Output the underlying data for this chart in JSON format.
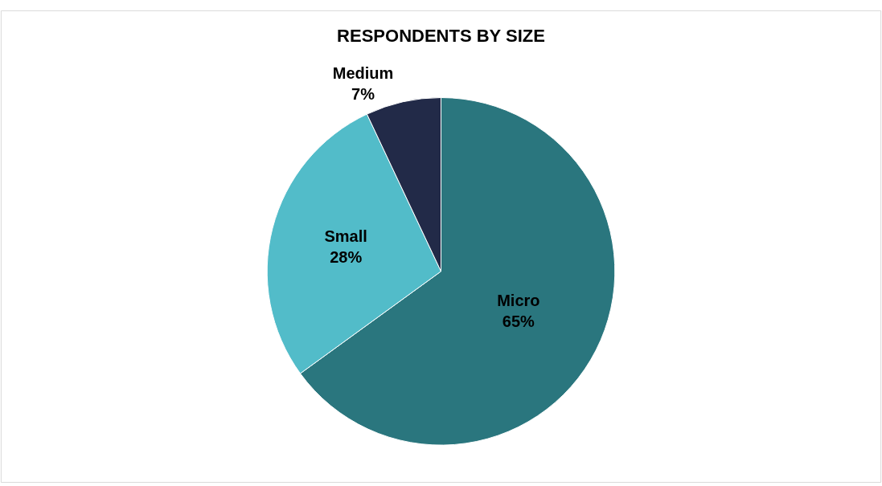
{
  "chart_data": {
    "type": "pie",
    "title": "RESPONDENTS BY SIZE",
    "categories": [
      "Micro",
      "Small",
      "Medium"
    ],
    "values": [
      65,
      28,
      7
    ],
    "value_labels": [
      "65%",
      "28%",
      "7%"
    ],
    "colors": [
      "#2a767e",
      "#52bcc9",
      "#222a48"
    ],
    "legend": false
  }
}
